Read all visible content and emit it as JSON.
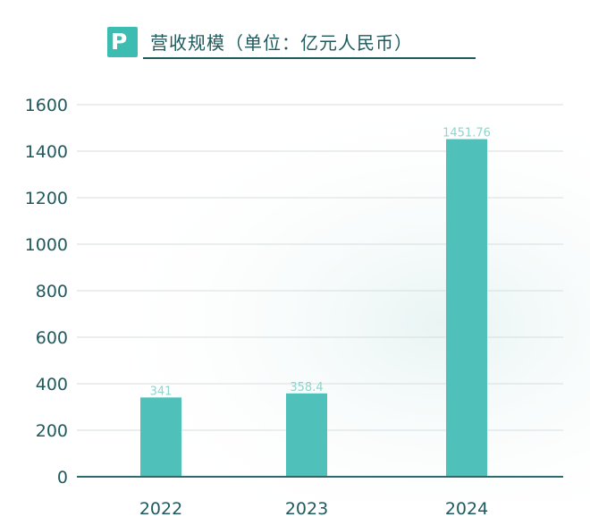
{
  "title": "营收规模（单位：亿元人民币）",
  "logo_letter": "P",
  "colors": {
    "bar": "#4fc1ba",
    "text": "#1f5a5e",
    "grid": "#d7dede",
    "label": "#8fd4cd",
    "axis": "#2b6a6e"
  },
  "chart_data": {
    "type": "bar",
    "title": "营收规模（单位：亿元人民币）",
    "categories": [
      "2022",
      "2023",
      "2024"
    ],
    "values": [
      341,
      358.4,
      1451.76
    ],
    "value_labels": [
      "341",
      "358.4",
      "1451.76"
    ],
    "ylim": [
      0,
      1600
    ],
    "yticks": [
      "0",
      "200",
      "400",
      "600",
      "800",
      "1000",
      "1200",
      "1400",
      "1600"
    ],
    "grid": true,
    "xlabel": "",
    "ylabel": ""
  }
}
